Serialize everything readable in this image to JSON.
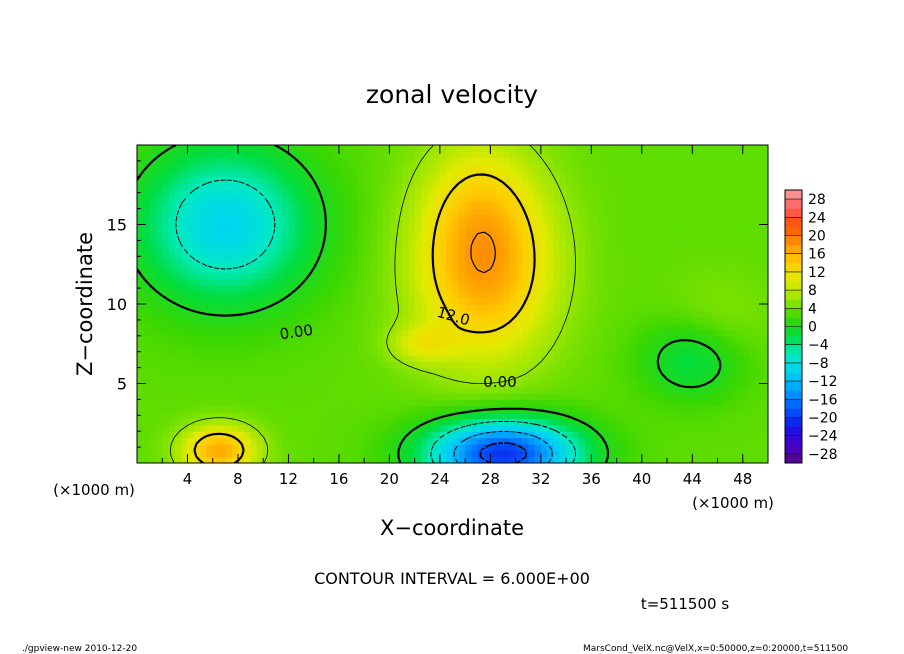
{
  "chart_data": {
    "type": "heatmap",
    "title": "zonal velocity",
    "xlabel": "X−coordinate",
    "ylabel": "Z−coordinate",
    "x_unit": "(×1000 m)",
    "y_unit": "(×1000 m)",
    "xlim": [
      0,
      50
    ],
    "ylim": [
      0,
      20
    ],
    "x_ticks": [
      "4",
      "8",
      "12",
      "16",
      "20",
      "24",
      "28",
      "32",
      "36",
      "40",
      "44",
      "48"
    ],
    "y_ticks": [
      "5",
      "10",
      "15"
    ],
    "colorbar": {
      "levels": [
        "28",
        "24",
        "20",
        "16",
        "12",
        "8",
        "4",
        "0",
        "−4",
        "−8",
        "−12",
        "−16",
        "−20",
        "−24",
        "−28"
      ],
      "range": [
        -30,
        30
      ]
    },
    "contour_labels": [
      "0.00",
      "12.0",
      "0.00"
    ],
    "contour_interval_text": "CONTOUR INTERVAL = 6.000E+00",
    "time_text": "t=511500 s",
    "features": [
      {
        "x": 27.5,
        "z": 11.7,
        "value": 17
      },
      {
        "x": 7.5,
        "z": 15,
        "value": -10
      },
      {
        "x": 29,
        "z": 0.8,
        "value": -22
      },
      {
        "x": 6.5,
        "z": 1.2,
        "value": 15
      },
      {
        "x": 22.5,
        "z": 7.5,
        "value": 14
      }
    ]
  },
  "footer": {
    "left": "./gpview-new  2010-12-20",
    "right": "MarsCond_VelX.nc@VelX,x=0:50000,z=0:20000,t=511500"
  }
}
